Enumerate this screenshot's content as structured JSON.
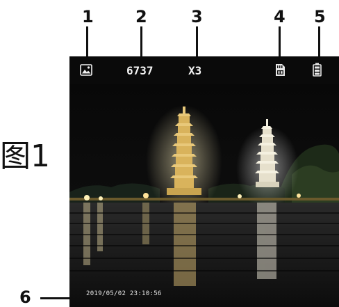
{
  "callouts": {
    "c1": "1",
    "c2": "2",
    "c3": "3",
    "c4": "4",
    "c5": "5",
    "c6": "6"
  },
  "figure_label": "图1",
  "status": {
    "mode_icon": "photo-icon",
    "shots_remaining": "6737",
    "zoom": "X3",
    "storage_icon": "tf-card-icon",
    "battery_icon": "battery-icon"
  },
  "timestamp": "2019/05/02   23:10:56",
  "colors": {
    "callout": "#111111",
    "screen_bg": "#050505",
    "pagoda_gold": "#e8c87a",
    "pagoda_white": "#f4f0e0"
  }
}
